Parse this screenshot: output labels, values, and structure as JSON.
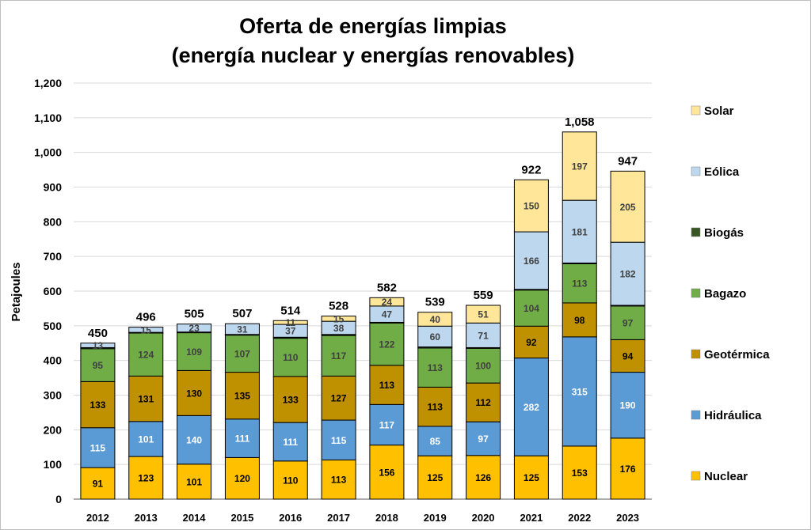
{
  "chart_data": {
    "type": "bar",
    "stacked": true,
    "title": "Oferta de energías limpias",
    "subtitle": "(energía nuclear y energías renovables)",
    "xlabel": "",
    "ylabel": "Petajoules",
    "ylim": [
      0,
      1200
    ],
    "yticks": [
      "0",
      "100",
      "200",
      "300",
      "400",
      "500",
      "600",
      "700",
      "800",
      "900",
      "1,000",
      "1,100",
      "1,200"
    ],
    "grid": true,
    "legend_position": "right",
    "categories": [
      "2012",
      "2013",
      "2014",
      "2015",
      "2016",
      "2017",
      "2018",
      "2019",
      "2020",
      "2021",
      "2022",
      "2023"
    ],
    "totals": [
      "450",
      "496",
      "505",
      "507",
      "514",
      "528",
      "582",
      "539",
      "559",
      "922",
      "1,058",
      "947"
    ],
    "series": [
      {
        "name": "Nuclear",
        "color": "#FFC000",
        "label_color": "#000000",
        "values": [
          91,
          123,
          101,
          120,
          110,
          113,
          156,
          125,
          126,
          125,
          153,
          176
        ]
      },
      {
        "name": "Hidráulica",
        "color": "#5B9BD5",
        "label_color": "#FFFFFF",
        "values": [
          115,
          101,
          140,
          111,
          111,
          115,
          117,
          85,
          97,
          282,
          315,
          190
        ]
      },
      {
        "name": "Geotérmica",
        "color": "#BF9000",
        "label_color": "#000000",
        "values": [
          133,
          131,
          130,
          135,
          133,
          127,
          113,
          113,
          112,
          92,
          98,
          94
        ]
      },
      {
        "name": "Bagazo",
        "color": "#70AD47",
        "label_color": "#404040",
        "values": [
          95,
          124,
          109,
          107,
          110,
          117,
          122,
          113,
          100,
          104,
          113,
          97
        ]
      },
      {
        "name": "Biogás",
        "color": "#375623",
        "label_color": "#404040",
        "values": [
          3,
          2,
          2,
          2,
          3,
          3,
          2,
          3,
          2,
          2,
          2,
          2
        ]
      },
      {
        "name": "Eólica",
        "color": "#BDD7EE",
        "label_color": "#404040",
        "values": [
          13,
          15,
          23,
          31,
          37,
          38,
          47,
          60,
          71,
          166,
          181,
          182
        ]
      },
      {
        "name": "Solar",
        "color": "#FFE699",
        "label_color": "#404040",
        "values": [
          0,
          0,
          0,
          0,
          11,
          15,
          24,
          40,
          51,
          150,
          197,
          205
        ]
      }
    ],
    "legend_order": [
      "Solar",
      "Eólica",
      "Biogás",
      "Bagazo",
      "Geotérmica",
      "Hidráulica",
      "Nuclear"
    ]
  }
}
